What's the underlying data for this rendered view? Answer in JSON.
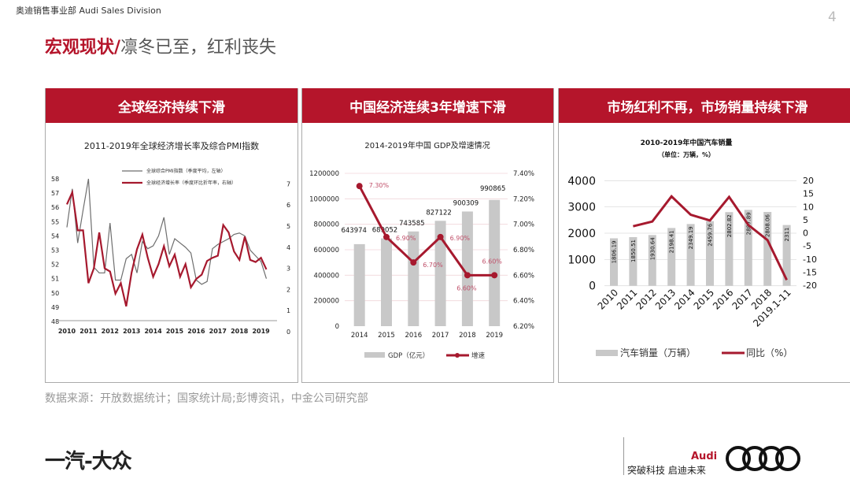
{
  "header": {
    "division": "奥迪销售事业部 Audi Sales Division",
    "page_number": "4"
  },
  "title": {
    "highlight": "宏观现状/",
    "rest": "凛冬已至，红利丧失"
  },
  "panels": [
    {
      "heading": "全球经济持续下滑"
    },
    {
      "heading": "中国经济连续3年增速下滑"
    },
    {
      "heading": "市场红利不再，市场销量持续下滑"
    }
  ],
  "source": "数据来源：开放数据统计；国家统计局;彭博资讯，中金公司研究部",
  "footer": {
    "faw_logo": "一汽-大众",
    "audi_word": "Audi",
    "slogan": "突破科技 启迪未来"
  },
  "colors": {
    "brand_red": "#b5152b",
    "line_red": "#a6192e",
    "bar_gray": "#c8c8c8",
    "line_gray": "#6e6e6e"
  },
  "chart_data": [
    {
      "type": "line",
      "title": "2011-2019年全球经济增长率及综合PMI指数",
      "x_ticks": [
        "2010",
        "2011",
        "2012",
        "2013",
        "2014",
        "2015",
        "2016",
        "2017",
        "2018",
        "2019"
      ],
      "y_left_ticks": [
        "48",
        "49",
        "50",
        "51",
        "52",
        "53",
        "54",
        "55",
        "56",
        "57",
        "58"
      ],
      "y_right_ticks": [
        "0",
        "1",
        "2",
        "3",
        "4",
        "5",
        "6",
        "7"
      ],
      "ylim_left": [
        48,
        58
      ],
      "ylim_right": [
        0,
        7
      ],
      "legend_position": "top",
      "x_start": 2010,
      "x_step": 0.25,
      "series": [
        {
          "name": "全球综合PMI指数（季度平均，左轴）",
          "axis": "left",
          "color": "#6e6e6e",
          "values": [
            54.6,
            57.3,
            53.5,
            55.8,
            58.0,
            51.8,
            51.4,
            51.4,
            54.9,
            50.9,
            50.9,
            52.4,
            52.7,
            51.4,
            53.6,
            53.1,
            53.3,
            54.0,
            55.3,
            52.7,
            53.8,
            53.5,
            53.2,
            52.8,
            50.9,
            50.6,
            50.8,
            53.1,
            53.4,
            53.6,
            53.8,
            54.1,
            54.2,
            54.0,
            53.0,
            52.6,
            52.2,
            51.0
          ]
        },
        {
          "name": "全球经济增长率（季度环比折年率，右轴）",
          "axis": "right",
          "color": "#a6192e",
          "values": [
            6.03,
            6.6,
            4.8,
            4.8,
            2.3,
            3.0,
            4.7,
            3.0,
            2.85,
            1.8,
            2.3,
            1.2,
            2.8,
            3.9,
            4.6,
            3.5,
            2.6,
            3.2,
            4.05,
            3.1,
            3.65,
            2.6,
            3.2,
            2.1,
            2.5,
            2.7,
            3.35,
            3.5,
            3.6,
            5.05,
            4.7,
            3.8,
            3.4,
            4.5,
            3.4,
            3.3,
            3.5,
            2.95
          ]
        }
      ]
    },
    {
      "type": "bar",
      "title": "2014-2019年中国 GDP及增速情况",
      "categories": [
        "2014",
        "2015",
        "2016",
        "2017",
        "2018",
        "2019"
      ],
      "y_left_ticks": [
        "0",
        "200000",
        "400000",
        "600000",
        "800000",
        "1000000",
        "1200000"
      ],
      "y_right_ticks": [
        "6.20%",
        "6.40%",
        "6.60%",
        "6.80%",
        "7.00%",
        "7.20%",
        "7.40%"
      ],
      "ylim_left": [
        0,
        1200000
      ],
      "ylim_right": [
        6.2,
        7.4
      ],
      "legend_position": "bottom",
      "series": [
        {
          "name": "GDP（亿元）",
          "kind": "bar",
          "values": [
            643974,
            689052,
            743585,
            827122,
            900309,
            990865
          ],
          "labels": [
            "643974",
            "689052",
            "743585",
            "827122",
            "900309",
            "990865"
          ]
        },
        {
          "name": "增速",
          "kind": "line",
          "values": [
            7.3,
            6.9,
            6.7,
            6.9,
            6.6,
            6.6
          ],
          "labels": [
            "7.30%",
            "6.90%",
            "6.70%",
            "6.90%",
            "6.60%",
            "6.60%"
          ]
        }
      ]
    },
    {
      "type": "bar",
      "title": "2010-2019年中国汽车销量",
      "subtitle": "（单位：万辆，%）",
      "categories": [
        "2010",
        "2011",
        "2012",
        "2013",
        "2014",
        "2015",
        "2016",
        "2017",
        "2018",
        "2019.1-11"
      ],
      "y_left_ticks": [
        "0",
        "1000",
        "2000",
        "3000",
        "4000"
      ],
      "y_right_ticks": [
        "-20",
        "-15",
        "-10",
        "-5",
        "0",
        "5",
        "10",
        "15",
        "20"
      ],
      "ylim_left": [
        0,
        4000
      ],
      "ylim_right": [
        -20,
        20
      ],
      "legend_position": "bottom",
      "series": [
        {
          "name": "汽车销量（万辆）",
          "kind": "bar",
          "values": [
            1806.19,
            1850.51,
            1930.64,
            2198.41,
            2349.19,
            2459.76,
            2802.82,
            2887.89,
            2808.06,
            2311
          ],
          "labels": [
            "1806.19",
            "1850.51",
            "1930.64",
            "2198.41",
            "2349.19",
            "2459.76",
            "2802.82",
            "2887.89",
            "2808.06",
            "2311"
          ]
        },
        {
          "name": "同比（%）",
          "kind": "line",
          "values": [
            null,
            2.5,
            4.3,
            13.9,
            6.9,
            4.7,
            13.7,
            3.0,
            -2.8,
            -18.0
          ]
        }
      ]
    }
  ]
}
